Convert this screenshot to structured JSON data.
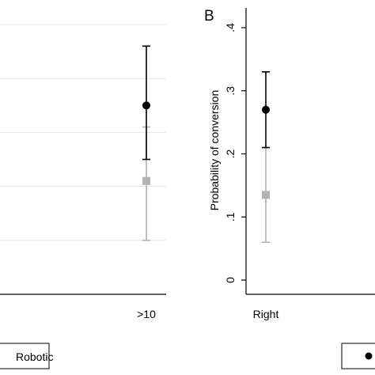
{
  "chart_data": [
    {
      "panel": "",
      "type": "scatter",
      "categories": [
        ">10"
      ],
      "series": [
        {
          "name": "",
          "marker": "circle",
          "color": "#000000",
          "values": [
            0.35
          ],
          "ci_low": [
            0.25
          ],
          "ci_high": [
            0.46
          ]
        },
        {
          "name": "Robotic",
          "marker": "square",
          "color": "#b3b3b3",
          "values": [
            0.21
          ],
          "ci_low": [
            0.1
          ],
          "ci_high": [
            0.31
          ]
        }
      ],
      "ylim": [
        0,
        0.5
      ],
      "yticks": [
        0.1,
        0.2,
        0.3,
        0.4,
        0.5
      ],
      "grid": true,
      "ylabel": "",
      "legend_label": "Robotic"
    },
    {
      "panel": "B",
      "type": "scatter",
      "categories": [
        "Right"
      ],
      "series": [
        {
          "name": "",
          "marker": "circle",
          "color": "#000000",
          "values": [
            0.27
          ],
          "ci_low": [
            0.21
          ],
          "ci_high": [
            0.33
          ]
        },
        {
          "name": "",
          "marker": "square",
          "color": "#b3b3b3",
          "values": [
            0.135
          ],
          "ci_low": [
            0.06
          ],
          "ci_high": [
            0.21
          ]
        }
      ],
      "ylim": [
        0,
        0.4
      ],
      "yticks": [
        0,
        0.1,
        0.2,
        0.3,
        0.4
      ],
      "ytick_labels": [
        "0",
        ".1",
        ".2",
        ".3",
        ".4"
      ],
      "grid": false,
      "ylabel": "Probability of conversion"
    }
  ]
}
